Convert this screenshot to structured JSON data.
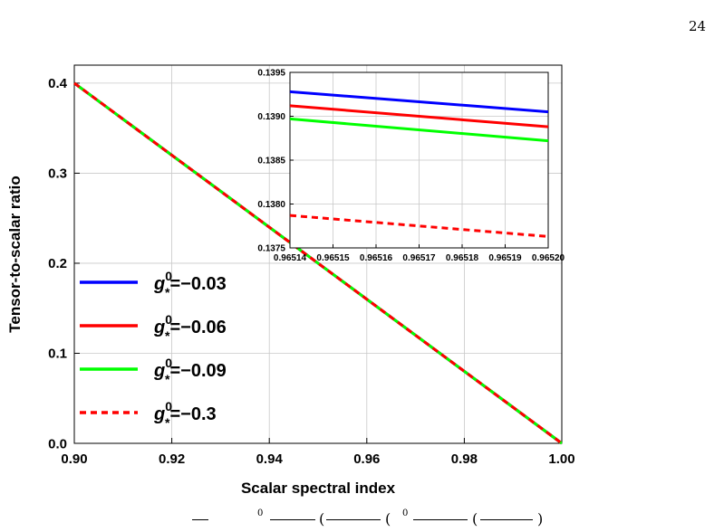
{
  "page": {
    "number": "24"
  },
  "colors": {
    "blue": "#0000ff",
    "red": "#ff0000",
    "green": "#00ff00",
    "dashed_red": "#ff0000",
    "frame": "#000000",
    "grid": "#c8c8c8"
  },
  "chart_data": [
    {
      "type": "line",
      "xlabel": "Scalar spectral index",
      "ylabel": "Tensor-to-scalar ratio",
      "xlim": [
        0.9,
        1.0
      ],
      "ylim": [
        0.0,
        0.42
      ],
      "xticks": [
        "0.90",
        "0.92",
        "0.94",
        "0.96",
        "0.98",
        "1.00"
      ],
      "xtick_values": [
        0.9,
        0.92,
        0.94,
        0.96,
        0.98,
        1.0
      ],
      "yticks": [
        "0.0",
        "0.1",
        "0.2",
        "0.3",
        "0.4"
      ],
      "ytick_values": [
        0.0,
        0.1,
        0.2,
        0.3,
        0.4
      ],
      "grid": true,
      "legend_position": "lower-left",
      "series": [
        {
          "name": "g*0=-0.03",
          "legend_value": "=−0.03",
          "color": "#0000ff",
          "style": "solid",
          "x": [
            0.9,
            0.95,
            1.0
          ],
          "y": [
            0.4,
            0.2,
            0.0
          ]
        },
        {
          "name": "g*0=-0.06",
          "legend_value": "=−0.06",
          "color": "#ff0000",
          "style": "solid",
          "x": [
            0.9,
            0.95,
            1.0
          ],
          "y": [
            0.4,
            0.2,
            0.0
          ]
        },
        {
          "name": "g*0=-0.09",
          "legend_value": "=−0.09",
          "color": "#00ff00",
          "style": "solid",
          "x": [
            0.9,
            0.95,
            1.0
          ],
          "y": [
            0.4,
            0.2,
            0.0
          ]
        },
        {
          "name": "g*0=-0.3",
          "legend_value": "=−0.3",
          "color": "#ff0000",
          "style": "dashed",
          "x": [
            0.9,
            0.95,
            1.0
          ],
          "y": [
            0.4,
            0.2,
            0.0
          ]
        }
      ],
      "legend_symbol": {
        "base": "g",
        "sup": "0",
        "sub": "*"
      }
    },
    {
      "type": "line",
      "role": "inset",
      "xlim": [
        0.96514,
        0.9652
      ],
      "ylim": [
        0.1375,
        0.1395
      ],
      "xticks": [
        "0.96514",
        "0.96515",
        "0.96516",
        "0.96517",
        "0.96518",
        "0.96519",
        "0.96520"
      ],
      "xtick_values": [
        0.96514,
        0.96515,
        0.96516,
        0.96517,
        0.96518,
        0.96519,
        0.9652
      ],
      "yticks": [
        "0.1375",
        "0.1380",
        "0.1385",
        "0.1390",
        "0.1395"
      ],
      "ytick_values": [
        0.1375,
        0.138,
        0.1385,
        0.139,
        0.1395
      ],
      "grid": true,
      "series": [
        {
          "name": "g*0=-0.03",
          "color": "#0000ff",
          "style": "solid",
          "x": [
            0.96514,
            0.9652
          ],
          "y": [
            0.13928,
            0.13905
          ]
        },
        {
          "name": "g*0=-0.06",
          "color": "#ff0000",
          "style": "solid",
          "x": [
            0.96514,
            0.9652
          ],
          "y": [
            0.13912,
            0.13888
          ]
        },
        {
          "name": "g*0=-0.09",
          "color": "#00ff00",
          "style": "solid",
          "x": [
            0.96514,
            0.9652
          ],
          "y": [
            0.13897,
            0.13872
          ]
        },
        {
          "name": "g*0=-0.3",
          "color": "#ff0000",
          "style": "dashed",
          "x": [
            0.96514,
            0.9652
          ],
          "y": [
            0.13787,
            0.13763
          ]
        }
      ]
    }
  ]
}
